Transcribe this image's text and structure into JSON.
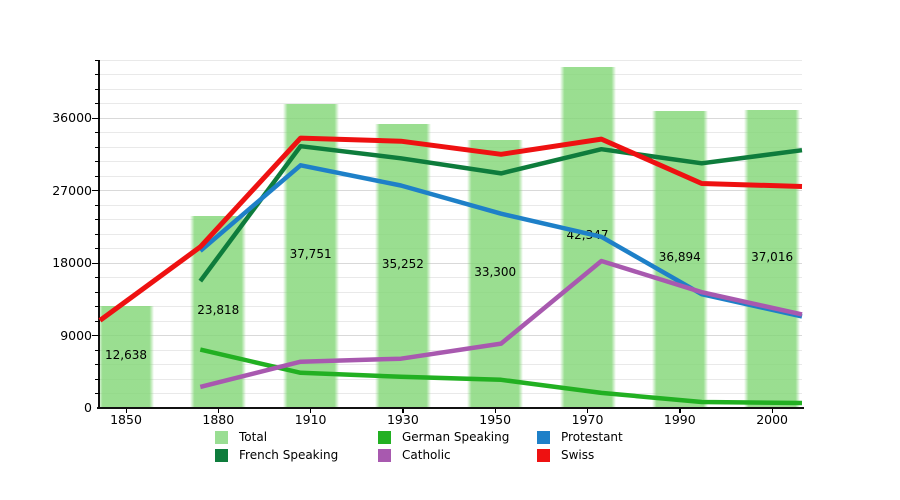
{
  "chart_data": {
    "type": "bar+line",
    "title": "",
    "xlabel": "",
    "ylabel": "",
    "categories": [
      "1850",
      "1880",
      "1910",
      "1930",
      "1950",
      "1970",
      "1990",
      "2000"
    ],
    "bars": {
      "name": "Total",
      "color": "#9ade93",
      "fill_rgba": "rgba(129,214,117,0.8)",
      "values": [
        12638,
        23818,
        37751,
        35252,
        33300,
        42347,
        36894,
        37016
      ],
      "labels": [
        "12,638",
        "23,818",
        "37,751",
        "35,252",
        "33,300",
        "42,347",
        "36,894",
        "37,016"
      ]
    },
    "series": [
      {
        "name": "French Speaking",
        "color": "#0e7c3c",
        "width": 4.5,
        "values": [
          null,
          15750,
          32500,
          31000,
          29125,
          32125,
          30375,
          32000
        ]
      },
      {
        "name": "German Speaking",
        "color": "#22b022",
        "width": 4.5,
        "values": [
          null,
          7250,
          4375,
          3875,
          3500,
          1875,
          750,
          625
        ]
      },
      {
        "name": "Protestant",
        "color": "#1e80c8",
        "width": 4.5,
        "values": [
          null,
          19500,
          30125,
          27625,
          24125,
          21250,
          14125,
          11375
        ]
      },
      {
        "name": "Catholic",
        "color": "#a859af",
        "width": 4.5,
        "values": [
          null,
          2625,
          5750,
          6125,
          8000,
          18250,
          14375,
          11625
        ]
      },
      {
        "name": "Swiss",
        "color": "#ee1111",
        "width": 5,
        "values": [
          10875,
          20000,
          33500,
          33125,
          31500,
          33375,
          27875,
          27500
        ]
      }
    ],
    "ylim": [
      0,
      43200
    ],
    "yticks": [
      0,
      9000,
      18000,
      27000,
      36000
    ],
    "ytick_labels": [
      "0",
      "9000",
      "18000",
      "27000",
      "36000"
    ],
    "grid": "horizontal minor gridlines every 1800, darker at labeled majors",
    "legend_position": "bottom"
  },
  "legend": {
    "items": [
      {
        "label": "Total",
        "color": "#9ade93"
      },
      {
        "label": "French Speaking",
        "color": "#0e7c3c"
      },
      {
        "label": "German Speaking",
        "color": "#22b022"
      },
      {
        "label": "Catholic",
        "color": "#a859af"
      },
      {
        "label": "Protestant",
        "color": "#1e80c8"
      },
      {
        "label": "Swiss",
        "color": "#ee1111"
      }
    ]
  }
}
